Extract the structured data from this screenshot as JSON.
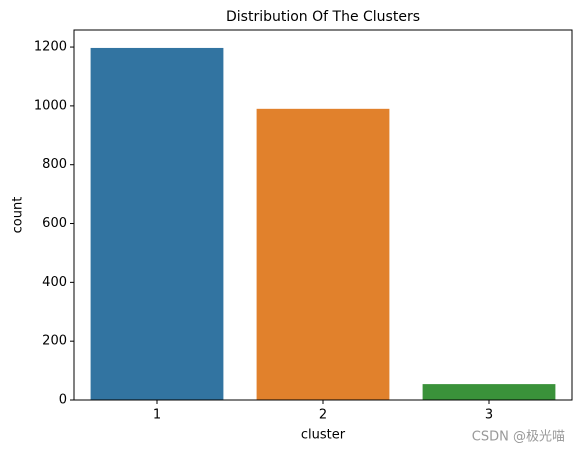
{
  "chart_data": {
    "type": "bar",
    "title": "Distribution Of The Clusters",
    "categories": [
      "1",
      "2",
      "3"
    ],
    "values": [
      1197,
      990,
      54
    ],
    "colors": [
      "#3274a1",
      "#e1812c",
      "#3a923a"
    ],
    "x_label": "cluster",
    "y_label": "count",
    "ylim": [
      0,
      1258
    ],
    "yticks": [
      0,
      200,
      400,
      600,
      800,
      1000,
      1200
    ],
    "grid": false,
    "watermark": "CSDN @极光喵"
  }
}
